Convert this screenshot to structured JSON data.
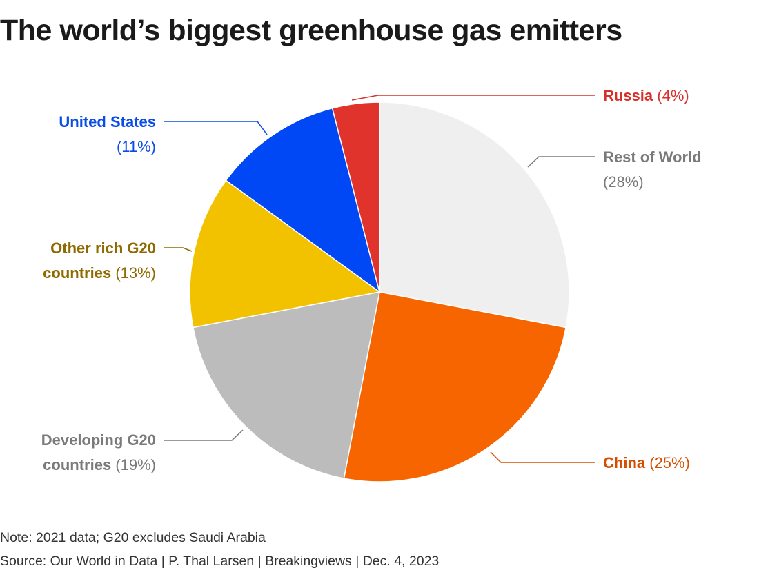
{
  "title": "The world’s biggest greenhouse gas emitters",
  "note": "Note: 2021 data; G20 excludes Saudi Arabia",
  "source": "Source: Our World in Data | P. Thal Larsen | Breakingviews | Dec. 4, 2023",
  "chart_data": {
    "type": "pie",
    "start_angle_deg": 0,
    "direction": "clockwise",
    "slices": [
      {
        "id": "rest-of-world",
        "label": "Rest of World",
        "pct_label": "(28%)",
        "value": 28,
        "color": "#efefef",
        "label_color": "#7a7a7a"
      },
      {
        "id": "china",
        "label": "China",
        "pct_label": "(25%)",
        "value": 25,
        "color": "#f76500",
        "label_color": "#d64f00"
      },
      {
        "id": "developing-g20",
        "label": "Developing G20 countries",
        "pct_label": "(19%)",
        "value": 19,
        "color": "#bcbcbc",
        "label_color": "#7a7a7a"
      },
      {
        "id": "other-rich-g20",
        "label": "Other rich G20 countries",
        "pct_label": "(13%)",
        "value": 13,
        "color": "#f2c200",
        "label_color": "#8e6a00"
      },
      {
        "id": "united-states",
        "label": "United States",
        "pct_label": "(11%)",
        "value": 11,
        "color": "#0048f5",
        "label_color": "#0a4ce8"
      },
      {
        "id": "russia",
        "label": "Russia",
        "pct_label": "(4%)",
        "value": 4,
        "color": "#e0332b",
        "label_color": "#d7302a"
      }
    ]
  }
}
